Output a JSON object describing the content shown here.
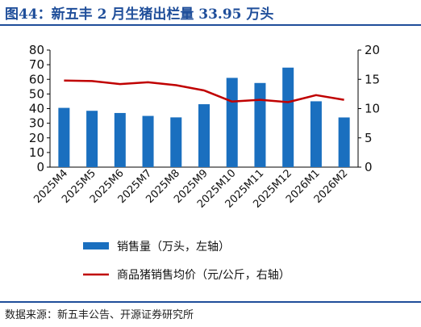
{
  "header": {
    "title": "图44：新五丰 2 月生猪出栏量 33.95 万头"
  },
  "footer": {
    "source": "数据来源：新五丰公告、开源证券研究所"
  },
  "colors": {
    "bar": "#1a6fbf",
    "line": "#c00000",
    "title": "#1f4e9a"
  },
  "chart_data": {
    "type": "bar",
    "categories": [
      "2025M4",
      "2025M5",
      "2025M6",
      "2025M7",
      "2025M8",
      "2025M9",
      "2025M10",
      "2025M11",
      "2025M12",
      "2026M1",
      "2026M2"
    ],
    "series": [
      {
        "name": "销售量（万头，左轴）",
        "type": "bar",
        "axis": "left",
        "values": [
          40.5,
          38.5,
          37.0,
          35.0,
          34.0,
          43.0,
          61.0,
          57.5,
          68.0,
          45.0,
          33.95
        ]
      },
      {
        "name": "商品猪销售均价（元/公斤，右轴）",
        "type": "line",
        "axis": "right",
        "values": [
          14.8,
          14.7,
          14.2,
          14.5,
          14.0,
          13.1,
          11.2,
          11.5,
          11.1,
          12.3,
          11.5
        ]
      }
    ],
    "y_left": {
      "min": 0,
      "max": 80,
      "ticks": [
        0,
        10,
        20,
        30,
        40,
        50,
        60,
        70,
        80
      ]
    },
    "y_right": {
      "min": 0,
      "max": 20,
      "ticks": [
        0,
        5,
        10,
        15,
        20
      ]
    },
    "legend_position": "bottom",
    "grid": false
  }
}
